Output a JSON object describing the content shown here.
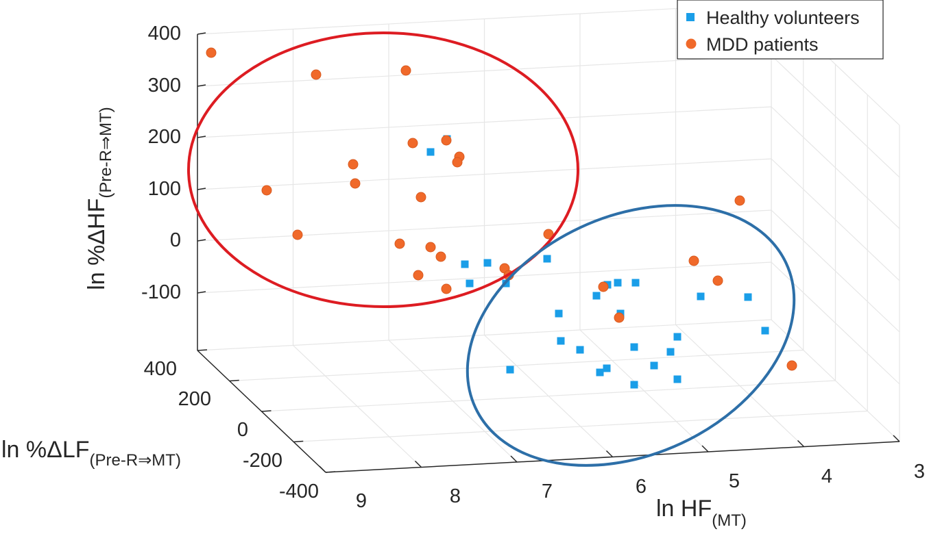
{
  "colors": {
    "healthy": "#1a9ee8",
    "mdd": "#f0692a",
    "mdd_edge": "#d85a20",
    "red_ellipse": "#dd1c22",
    "blue_ellipse": "#2d6fa8",
    "grid": "#e6e6e6",
    "axis": "#262626"
  },
  "chart_data": {
    "type": "scatter",
    "projection": "3d",
    "title": "",
    "xlabel": {
      "main": "ln HF",
      "sub": "(MT)"
    },
    "ylabel": {
      "main": "ln %ΔLF",
      "sub": "(Pre-R⇒MT)"
    },
    "zlabel": {
      "main": "ln %ΔHF",
      "sub": "(Pre-R⇒MT)"
    },
    "x_ticks": [
      "9",
      "8",
      "7",
      "6",
      "5",
      "4",
      "3"
    ],
    "y_ticks": [
      "400",
      "200",
      "0",
      "-200",
      "-400"
    ],
    "z_ticks": [
      "400",
      "300",
      "200",
      "100",
      "0",
      "-100"
    ],
    "grid": true,
    "legend": {
      "position": "top-right",
      "entries": [
        {
          "label": "Healthy volunteers",
          "marker": "square"
        },
        {
          "label": "MDD patients",
          "marker": "circle"
        }
      ]
    },
    "series": [
      {
        "name": "Healthy volunteers",
        "marker": "square",
        "screen_points": [
          [
            628,
            222
          ],
          [
            652,
            203
          ],
          [
            678,
            386
          ],
          [
            711,
            384
          ],
          [
            685,
            414
          ],
          [
            738,
            414
          ],
          [
            798,
            378
          ],
          [
            815,
            458
          ],
          [
            818,
            498
          ],
          [
            846,
            511
          ],
          [
            744,
            540
          ],
          [
            870,
            432
          ],
          [
            886,
            416
          ],
          [
            901,
            413
          ],
          [
            927,
            413
          ],
          [
            905,
            458
          ],
          [
            925,
            507
          ],
          [
            988,
            492
          ],
          [
            978,
            514
          ],
          [
            954,
            534
          ],
          [
            925,
            562
          ],
          [
            988,
            554
          ],
          [
            885,
            538
          ],
          [
            875,
            544
          ],
          [
            1022,
            433
          ],
          [
            1091,
            434
          ],
          [
            1116,
            483
          ]
        ]
      },
      {
        "name": "MDD patients",
        "marker": "circle",
        "screen_points": [
          [
            308,
            77
          ],
          [
            461,
            109
          ],
          [
            592,
            103
          ],
          [
            602,
            209
          ],
          [
            651,
            205
          ],
          [
            670,
            229
          ],
          [
            667,
            237
          ],
          [
            515,
            240
          ],
          [
            518,
            268
          ],
          [
            389,
            278
          ],
          [
            614,
            288
          ],
          [
            434,
            343
          ],
          [
            583,
            356
          ],
          [
            628,
            361
          ],
          [
            643,
            375
          ],
          [
            610,
            402
          ],
          [
            651,
            422
          ],
          [
            736,
            392
          ],
          [
            742,
            402
          ],
          [
            800,
            342
          ],
          [
            880,
            419
          ],
          [
            903,
            464
          ],
          [
            1012,
            381
          ],
          [
            1047,
            410
          ],
          [
            1079,
            293
          ],
          [
            1155,
            534
          ]
        ]
      }
    ],
    "groupings": [
      {
        "name": "MDD cluster",
        "shape": "ellipse"
      },
      {
        "name": "Healthy cluster",
        "shape": "ellipse"
      }
    ]
  }
}
